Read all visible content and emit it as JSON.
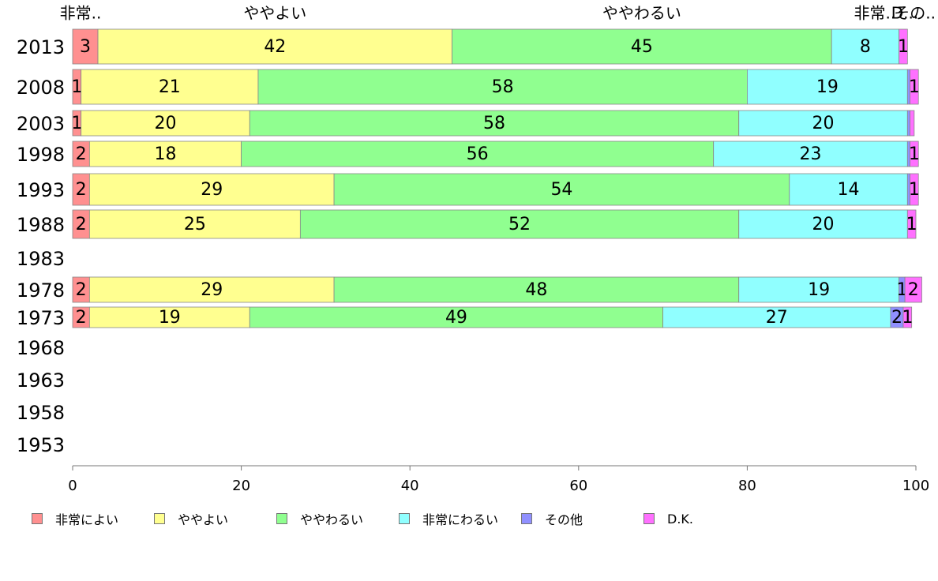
{
  "chart_data": {
    "type": "bar",
    "orientation": "horizontal",
    "stacked": true,
    "categories": [
      "2013",
      "2008",
      "2003",
      "1998",
      "1993",
      "1988",
      "1983",
      "1978",
      "1973",
      "1968",
      "1963",
      "1958",
      "1953"
    ],
    "header_labels": [
      "非常..",
      "ややよい",
      "ややわるい",
      "非常..",
      "その..",
      "D..."
    ],
    "xlim": [
      0,
      100
    ],
    "x_ticks": [
      0,
      20,
      40,
      60,
      80,
      100
    ],
    "x_tick_labels": [
      "0",
      "20",
      "40",
      "60",
      "80",
      "100"
    ],
    "legend_position": "bottom-left",
    "grid": false,
    "series": [
      {
        "name": "非常によい",
        "color": "#ff9090",
        "values": [
          3,
          1,
          1,
          2,
          2,
          2,
          null,
          2,
          2,
          null,
          null,
          null,
          null
        ]
      },
      {
        "name": "ややよい",
        "color": "#ffff90",
        "values": [
          42,
          21,
          20,
          18,
          29,
          25,
          null,
          29,
          19,
          null,
          null,
          null,
          null
        ]
      },
      {
        "name": "ややわるい",
        "color": "#90ff90",
        "values": [
          45,
          58,
          58,
          56,
          54,
          52,
          null,
          48,
          49,
          null,
          null,
          null,
          null
        ]
      },
      {
        "name": "非常にわるい",
        "color": "#90ffff",
        "values": [
          8,
          19,
          20,
          23,
          14,
          20,
          null,
          19,
          27,
          null,
          null,
          null,
          null
        ]
      },
      {
        "name": "その他",
        "color": "#9090ff",
        "values": [
          0,
          0.3,
          0.3,
          0.3,
          0.3,
          0,
          null,
          0.7,
          1.5,
          null,
          null,
          null,
          null
        ]
      },
      {
        "name": "D.K.",
        "color": "#ff70ff",
        "values": [
          1,
          1,
          0.5,
          1,
          1,
          1,
          null,
          2,
          1,
          null,
          null,
          null,
          null
        ]
      }
    ],
    "data_labels": [
      [
        "3",
        "42",
        "45",
        "8",
        "",
        "1"
      ],
      [
        "1",
        "21",
        "58",
        "19",
        "",
        "1"
      ],
      [
        "1",
        "20",
        "58",
        "20",
        "",
        ""
      ],
      [
        "2",
        "18",
        "56",
        "23",
        "",
        "1"
      ],
      [
        "2",
        "29",
        "54",
        "14",
        "",
        "1"
      ],
      [
        "2",
        "25",
        "52",
        "20",
        "",
        "1"
      ],
      [
        "",
        "",
        "",
        "",
        "",
        ""
      ],
      [
        "2",
        "29",
        "48",
        "19",
        "1",
        "2"
      ],
      [
        "2",
        "19",
        "49",
        "27",
        "2",
        "1"
      ],
      [
        "",
        "",
        "",
        "",
        "",
        ""
      ],
      [
        "",
        "",
        "",
        "",
        "",
        ""
      ],
      [
        "",
        "",
        "",
        "",
        "",
        ""
      ],
      [
        "",
        "",
        "",
        "",
        "",
        ""
      ]
    ]
  }
}
